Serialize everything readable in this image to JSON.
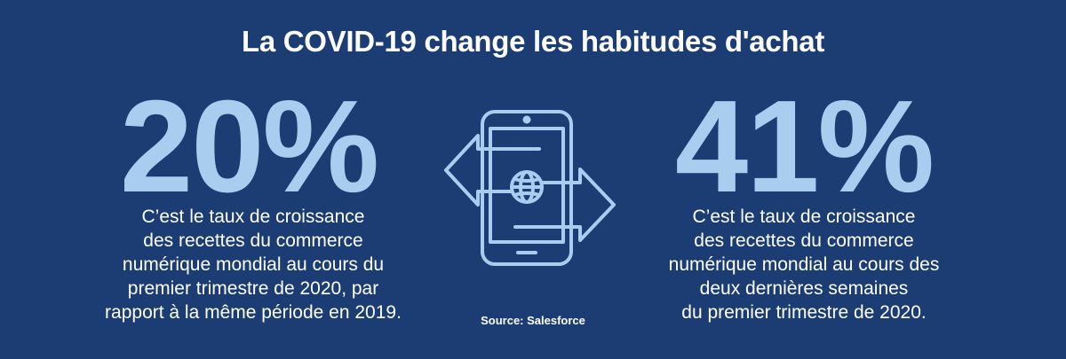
{
  "title": "La COVID-19 change les habitudes d'achat",
  "left_stat": {
    "value": "20%",
    "description_lines": [
      "C’est le taux de croissance",
      "des recettes du commerce",
      "numérique mondial au cours du",
      "premier trimestre de 2020, par",
      "rapport à la même période en 2019."
    ]
  },
  "right_stat": {
    "value": "41%",
    "description_lines": [
      "C’est le taux de croissance",
      "des recettes du commerce",
      "numérique mondial au cours des",
      "deux dernières semaines",
      "du premier trimestre de 2020."
    ]
  },
  "source": "Source: Salesforce",
  "center_graphic": {
    "icons": [
      "smartphone-icon",
      "globe-icon",
      "arrow-left-icon",
      "arrow-right-icon"
    ],
    "stroke_color": "#a8cdee"
  },
  "colors": {
    "background": "#1b3d73",
    "accent": "#a8cdee",
    "text": "#ffffff"
  }
}
